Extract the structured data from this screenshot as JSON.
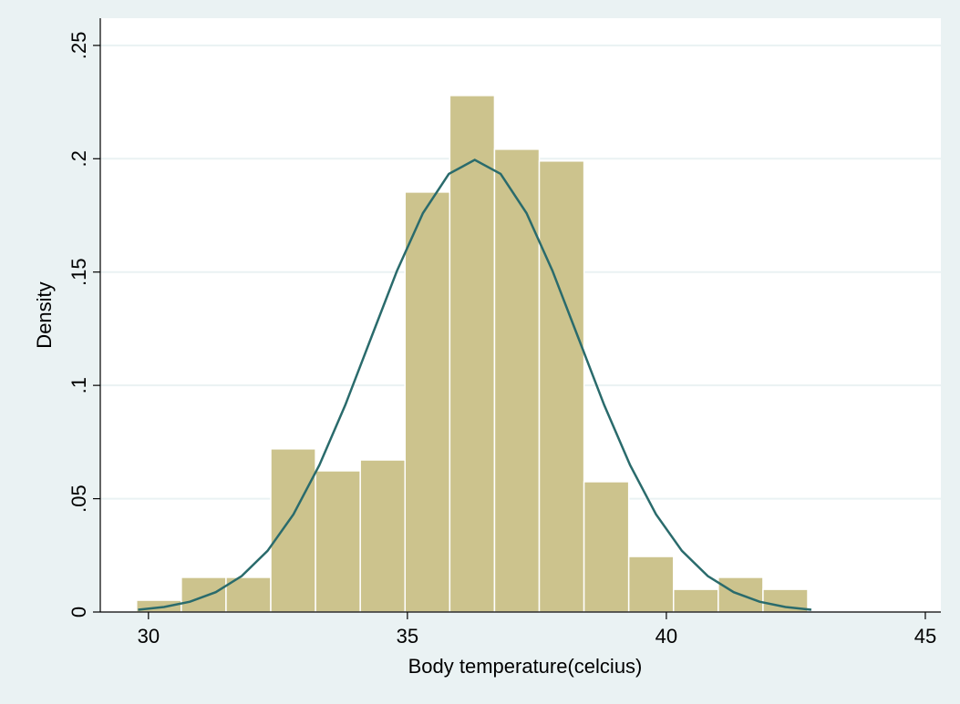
{
  "chart_data": {
    "type": "histogram",
    "xlabel": "Body temperature(celcius)",
    "ylabel": "Density",
    "bins": [
      29.77,
      30.634,
      31.498,
      32.362,
      33.226,
      34.09,
      34.954,
      35.818,
      36.682,
      37.546,
      38.41,
      39.274,
      40.138,
      41.002,
      41.866,
      42.73
    ],
    "values": [
      0.0052,
      0.0153,
      0.0153,
      0.072,
      0.0623,
      0.0671,
      0.1853,
      0.2279,
      0.2042,
      0.199,
      0.0575,
      0.0245,
      0.01,
      0.0153,
      0.01
    ],
    "color": "#ccc38d",
    "density_curve": {
      "color": "#2a6b6c",
      "x": [
        29.8,
        30.3,
        30.8,
        31.3,
        31.8,
        32.3,
        32.8,
        33.3,
        33.8,
        34.3,
        34.8,
        35.3,
        35.8,
        36.3,
        36.8,
        37.3,
        37.8,
        38.3,
        38.8,
        39.3,
        39.8,
        40.3,
        40.8,
        41.3,
        41.8,
        42.3,
        42.8
      ],
      "values": [
        0.00102,
        0.00222,
        0.00455,
        0.00876,
        0.01587,
        0.027,
        0.0431,
        0.0648,
        0.0913,
        0.121,
        0.1506,
        0.176,
        0.1933,
        0.1995,
        0.1933,
        0.176,
        0.1506,
        0.121,
        0.0913,
        0.0648,
        0.0431,
        0.027,
        0.01587,
        0.00876,
        0.00455,
        0.00222,
        0.00102
      ]
    },
    "xlim": [
      29.07,
      45.3
    ],
    "ylim": [
      0,
      0.262
    ],
    "xticks": [
      30,
      35,
      40,
      45
    ],
    "yticks": [
      0,
      {
        "value": 0.05,
        "label": ".05"
      },
      {
        "value": 0.1,
        "label": ".1"
      },
      {
        "value": 0.15,
        "label": ".15"
      },
      {
        "value": 0.2,
        "label": ".2"
      },
      {
        "value": 0.25,
        "label": ".25"
      }
    ],
    "grid": true
  }
}
